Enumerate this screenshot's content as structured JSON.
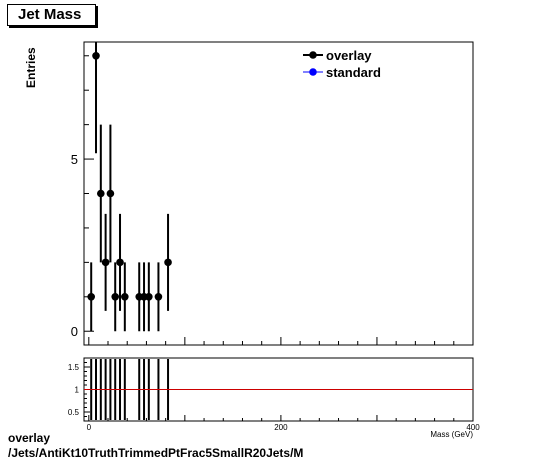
{
  "title": "Jet Mass",
  "footer": {
    "line1": "overlay",
    "line2": "/Jets/AntiKt10TruthTrimmedPtFrac5SmallR20Jets/M"
  },
  "colors": {
    "overlay": "#000000",
    "standard": "#0000ff",
    "ratio_line": "#cc0000"
  },
  "chart_data": [
    {
      "type": "scatter",
      "title": "Jet Mass",
      "xlabel": "Mass (GeV)",
      "ylabel": "Entries",
      "xlim": [
        -5,
        400
      ],
      "ylim": [
        -0.4,
        8.4
      ],
      "yticks": [
        0,
        5
      ],
      "legend": [
        "overlay",
        "standard"
      ],
      "legend_position": "top-right",
      "series": [
        {
          "name": "overlay",
          "x": [
            2.5,
            7.5,
            12.5,
            17.5,
            22.5,
            27.5,
            32.5,
            37.5,
            52.5,
            57.5,
            62.5,
            72.5,
            82.5
          ],
          "y": [
            1,
            8,
            4,
            2,
            4,
            1,
            2,
            1,
            1,
            1,
            1,
            1,
            2
          ],
          "yerr": [
            1,
            2.83,
            2,
            1.41,
            2,
            1,
            1.41,
            1,
            1,
            1,
            1,
            1,
            1.41
          ]
        },
        {
          "name": "standard",
          "x": [],
          "y": []
        }
      ]
    },
    {
      "type": "line",
      "xlim": [
        -5,
        400
      ],
      "ylim": [
        0.3,
        1.7
      ],
      "yticks": [
        0.5,
        1,
        1.5
      ],
      "xticks": [
        0,
        200,
        400
      ],
      "reference_line": 1,
      "ratio_err_x": [
        2.5,
        7.5,
        12.5,
        17.5,
        22.5,
        27.5,
        32.5,
        37.5,
        52.5,
        57.5,
        62.5,
        72.5,
        82.5
      ]
    }
  ]
}
